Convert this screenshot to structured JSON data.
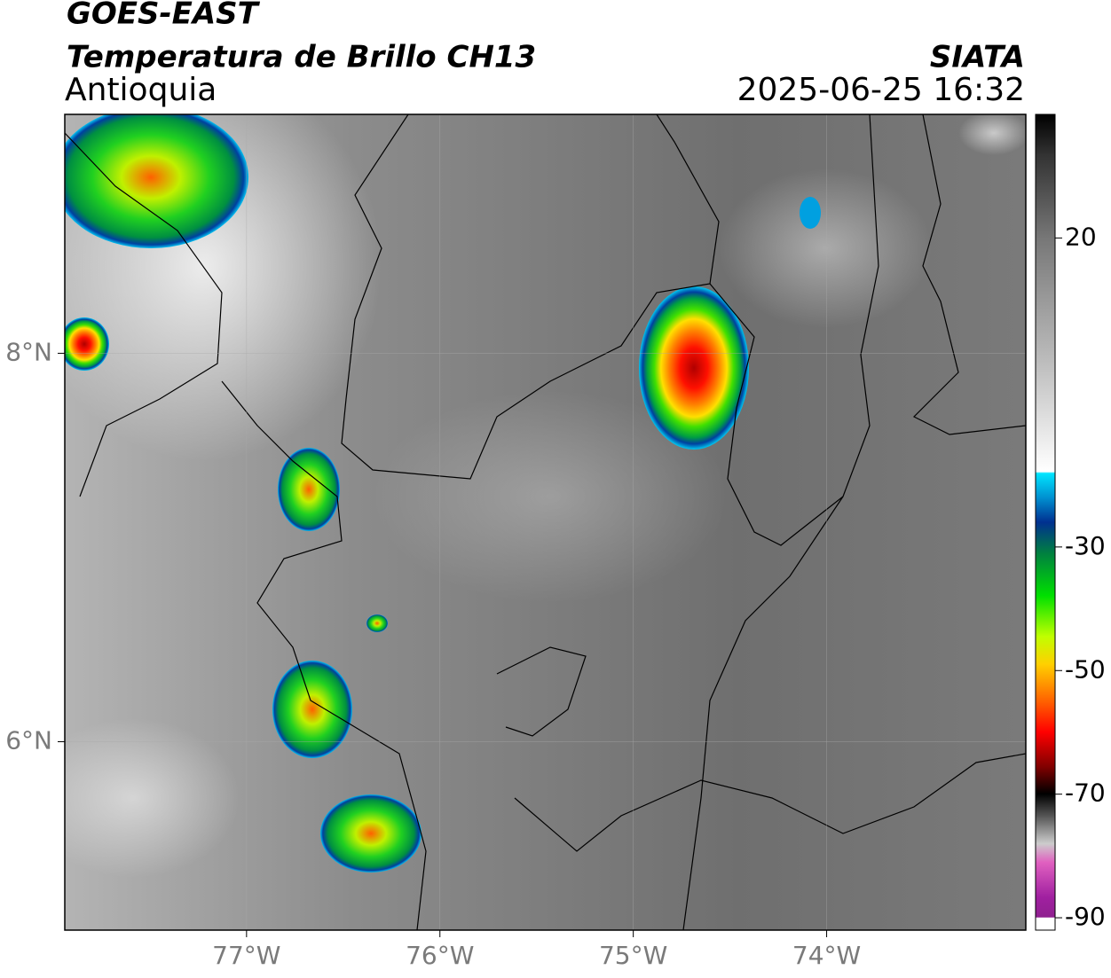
{
  "header": {
    "title": "GOES-EAST",
    "subtitle": "Temperatura de Brillo CH13",
    "region": "Antioquia",
    "source": "SIATA",
    "timestamp": "2025-06-25 16:32"
  },
  "map": {
    "xlim": [
      -77.94,
      -72.97
    ],
    "ylim": [
      5.03,
      9.23
    ],
    "xticks": [
      {
        "value": -77,
        "label": "77°W"
      },
      {
        "value": -76,
        "label": "76°W"
      },
      {
        "value": -75,
        "label": "75°W"
      },
      {
        "value": -74,
        "label": "74°W"
      }
    ],
    "yticks": [
      {
        "value": 6,
        "label": "6°N"
      },
      {
        "value": 8,
        "label": "8°N"
      }
    ],
    "grid": true
  },
  "colorbar": {
    "lim": [
      -92,
      40
    ],
    "ticks": [
      20,
      -30,
      -50,
      -70,
      -90
    ]
  }
}
